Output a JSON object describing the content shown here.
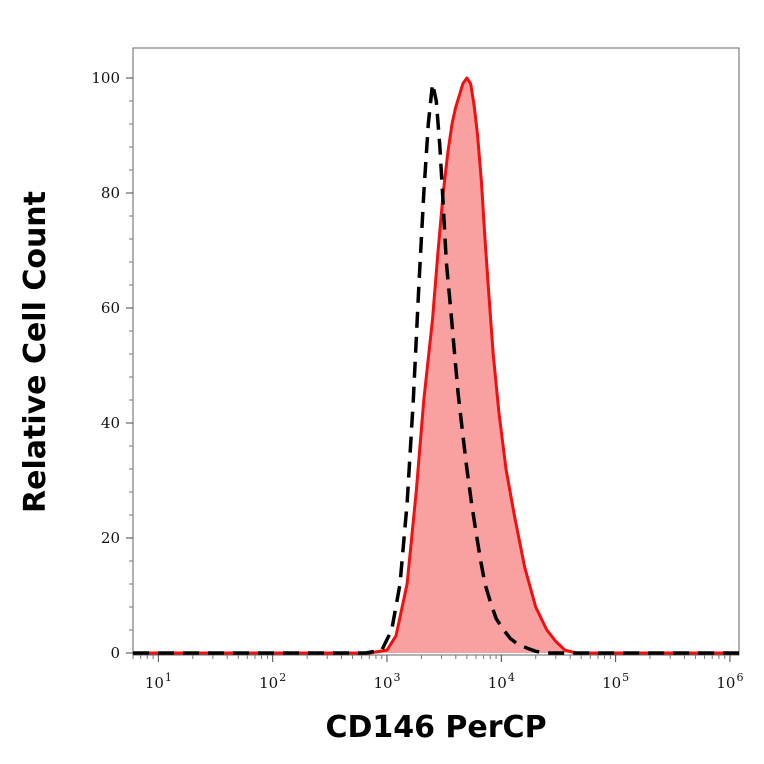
{
  "chart_data": {
    "type": "area",
    "title": "",
    "xlabel": "CD146 PerCP",
    "ylabel": "Relative Cell Count",
    "xscale": "log",
    "xlim": [
      6,
      1200000
    ],
    "ylim": [
      0,
      100
    ],
    "grid": false,
    "x_ticks": [
      {
        "base": "10",
        "exp": "1",
        "value": 10
      },
      {
        "base": "10",
        "exp": "2",
        "value": 100
      },
      {
        "base": "10",
        "exp": "3",
        "value": 1000
      },
      {
        "base": "10",
        "exp": "4",
        "value": 10000
      },
      {
        "base": "10",
        "exp": "5",
        "value": 100000
      },
      {
        "base": "10",
        "exp": "6",
        "value": 1000000
      }
    ],
    "y_ticks": [
      "0",
      "20",
      "40",
      "60",
      "80",
      "100"
    ],
    "series": [
      {
        "style": "filled",
        "color": "#ee1111",
        "fill": "#f9a0a0",
        "x": [
          6,
          700,
          1000,
          1200,
          1500,
          1800,
          2100,
          2500,
          2800,
          3100,
          3400,
          3700,
          4000,
          4300,
          4600,
          5000,
          5400,
          5800,
          6200,
          6700,
          7200,
          7800,
          8500,
          9500,
          11000,
          13000,
          16000,
          20000,
          25000,
          30000,
          36000,
          45000,
          1200000
        ],
        "y": [
          0,
          0,
          0.5,
          3,
          12,
          28,
          44,
          58,
          70,
          80,
          87,
          92,
          95,
          97,
          99,
          100,
          99,
          95,
          90,
          82,
          72,
          62,
          52,
          42,
          32,
          24,
          15,
          8,
          4,
          2,
          0.5,
          0,
          0
        ]
      },
      {
        "style": "dashed",
        "color": "#000000",
        "x": [
          6,
          650,
          900,
          1100,
          1300,
          1500,
          1700,
          1900,
          2100,
          2300,
          2500,
          2700,
          2900,
          3100,
          3300,
          3600,
          3900,
          4200,
          4600,
          5000,
          5500,
          6000,
          6600,
          7200,
          8000,
          9000,
          10500,
          12000,
          14000,
          17000,
          20000,
          25000,
          1200000
        ],
        "y": [
          0,
          0,
          0.5,
          4,
          12,
          26,
          44,
          64,
          80,
          92,
          99,
          96,
          88,
          78,
          68,
          60,
          52,
          45,
          38,
          32,
          26,
          21,
          16,
          12,
          9,
          6,
          4,
          2.5,
          1.5,
          0.8,
          0.3,
          0,
          0
        ]
      }
    ]
  }
}
